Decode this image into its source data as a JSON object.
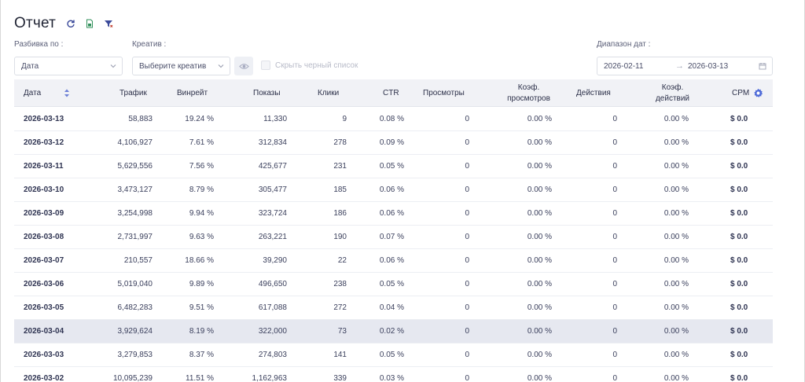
{
  "header": {
    "title": "Отчет",
    "icons": [
      "refresh-icon",
      "export-excel-icon",
      "filter-icon"
    ]
  },
  "filters": {
    "breakdown_label": "Разбивка по :",
    "breakdown_value": "Дата",
    "creative_label": "Креатив :",
    "creative_placeholder": "Выберите креатив",
    "hide_blacklist_label": "Скрыть черный список",
    "date_range_label": "Диапазон дат :",
    "date_from": "2026-02-11",
    "date_arrow": "→",
    "date_to": "2026-03-13"
  },
  "table": {
    "columns": [
      {
        "key": "date",
        "label": "Дата"
      },
      {
        "key": "traffic",
        "label": "Трафик"
      },
      {
        "key": "winrate",
        "label": "Винрейт"
      },
      {
        "key": "impressions",
        "label": "Показы"
      },
      {
        "key": "clicks",
        "label": "Клики"
      },
      {
        "key": "ctr",
        "label": "CTR"
      },
      {
        "key": "views",
        "label": "Просмотры"
      },
      {
        "key": "view_rate",
        "label": "Коэф. просмотров"
      },
      {
        "key": "actions",
        "label": "Действия"
      },
      {
        "key": "action_rate",
        "label": "Коэф. действий"
      },
      {
        "key": "cpm",
        "label": "CPM"
      }
    ],
    "rows": [
      {
        "date": "2026-03-13",
        "traffic": "58,883",
        "winrate": "19.24 %",
        "impressions": "11,330",
        "clicks": "9",
        "ctr": "0.08 %",
        "views": "0",
        "view_rate": "0.00 %",
        "actions": "0",
        "action_rate": "0.00 %",
        "cpm": "$ 0.0"
      },
      {
        "date": "2026-03-12",
        "traffic": "4,106,927",
        "winrate": "7.61 %",
        "impressions": "312,834",
        "clicks": "278",
        "ctr": "0.09 %",
        "views": "0",
        "view_rate": "0.00 %",
        "actions": "0",
        "action_rate": "0.00 %",
        "cpm": "$ 0.0"
      },
      {
        "date": "2026-03-11",
        "traffic": "5,629,556",
        "winrate": "7.56 %",
        "impressions": "425,677",
        "clicks": "231",
        "ctr": "0.05 %",
        "views": "0",
        "view_rate": "0.00 %",
        "actions": "0",
        "action_rate": "0.00 %",
        "cpm": "$ 0.0"
      },
      {
        "date": "2026-03-10",
        "traffic": "3,473,127",
        "winrate": "8.79 %",
        "impressions": "305,477",
        "clicks": "185",
        "ctr": "0.06 %",
        "views": "0",
        "view_rate": "0.00 %",
        "actions": "0",
        "action_rate": "0.00 %",
        "cpm": "$ 0.0"
      },
      {
        "date": "2026-03-09",
        "traffic": "3,254,998",
        "winrate": "9.94 %",
        "impressions": "323,724",
        "clicks": "186",
        "ctr": "0.06 %",
        "views": "0",
        "view_rate": "0.00 %",
        "actions": "0",
        "action_rate": "0.00 %",
        "cpm": "$ 0.0"
      },
      {
        "date": "2026-03-08",
        "traffic": "2,731,997",
        "winrate": "9.63 %",
        "impressions": "263,221",
        "clicks": "190",
        "ctr": "0.07 %",
        "views": "0",
        "view_rate": "0.00 %",
        "actions": "0",
        "action_rate": "0.00 %",
        "cpm": "$ 0.0"
      },
      {
        "date": "2026-03-07",
        "traffic": "210,557",
        "winrate": "18.66 %",
        "impressions": "39,290",
        "clicks": "22",
        "ctr": "0.06 %",
        "views": "0",
        "view_rate": "0.00 %",
        "actions": "0",
        "action_rate": "0.00 %",
        "cpm": "$ 0.0"
      },
      {
        "date": "2026-03-06",
        "traffic": "5,019,040",
        "winrate": "9.89 %",
        "impressions": "496,650",
        "clicks": "238",
        "ctr": "0.05 %",
        "views": "0",
        "view_rate": "0.00 %",
        "actions": "0",
        "action_rate": "0.00 %",
        "cpm": "$ 0.0"
      },
      {
        "date": "2026-03-05",
        "traffic": "6,482,283",
        "winrate": "9.51 %",
        "impressions": "617,088",
        "clicks": "272",
        "ctr": "0.04 %",
        "views": "0",
        "view_rate": "0.00 %",
        "actions": "0",
        "action_rate": "0.00 %",
        "cpm": "$ 0.0"
      },
      {
        "date": "2026-03-04",
        "traffic": "3,929,624",
        "winrate": "8.19 %",
        "impressions": "322,000",
        "clicks": "73",
        "ctr": "0.02 %",
        "views": "0",
        "view_rate": "0.00 %",
        "actions": "0",
        "action_rate": "0.00 %",
        "cpm": "$ 0.0",
        "highlighted": true
      },
      {
        "date": "2026-03-03",
        "traffic": "3,279,853",
        "winrate": "8.37 %",
        "impressions": "274,803",
        "clicks": "141",
        "ctr": "0.05 %",
        "views": "0",
        "view_rate": "0.00 %",
        "actions": "0",
        "action_rate": "0.00 %",
        "cpm": "$ 0.0"
      },
      {
        "date": "2026-03-02",
        "traffic": "10,095,239",
        "winrate": "11.51 %",
        "impressions": "1,162,963",
        "clicks": "339",
        "ctr": "0.03 %",
        "views": "0",
        "view_rate": "0.00 %",
        "actions": "0",
        "action_rate": "0.00 %",
        "cpm": "$ 0.0"
      }
    ]
  },
  "colors": {
    "accent": "#4f6bd8",
    "header_bg": "#f1f2f6",
    "highlight_row": "#e6e8f0"
  }
}
